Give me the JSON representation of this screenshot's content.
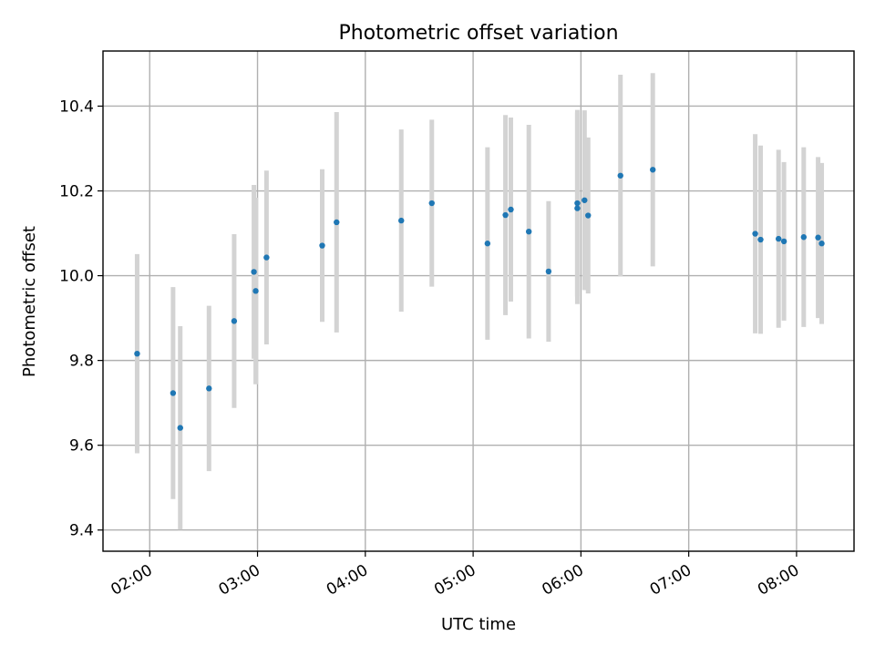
{
  "chart_data": {
    "type": "scatter",
    "title": "Photometric offset variation",
    "xlabel": "UTC time",
    "ylabel": "Photometric offset",
    "x_unit": "UTC time (HH:MM)",
    "xlim": [
      "01:34",
      "08:32"
    ],
    "ylim": [
      9.35,
      10.53
    ],
    "xticks": [
      "02:00",
      "03:00",
      "04:00",
      "05:00",
      "06:00",
      "07:00",
      "08:00"
    ],
    "yticks": [
      9.4,
      9.6,
      9.8,
      10.0,
      10.2,
      10.4
    ],
    "grid": true,
    "colors": {
      "point": "#1f77b4",
      "errorbar": "#d3d3d3"
    },
    "points": [
      {
        "x": "01:53",
        "y": 9.816,
        "err": 0.235
      },
      {
        "x": "02:13",
        "y": 9.723,
        "err": 0.25
      },
      {
        "x": "02:17",
        "y": 9.641,
        "err": 0.24
      },
      {
        "x": "02:33",
        "y": 9.734,
        "err": 0.195
      },
      {
        "x": "02:47",
        "y": 9.893,
        "err": 0.205
      },
      {
        "x": "02:58",
        "y": 10.009,
        "err": 0.205
      },
      {
        "x": "02:59",
        "y": 9.964,
        "err": 0.22
      },
      {
        "x": "03:05",
        "y": 10.043,
        "err": 0.205
      },
      {
        "x": "03:36",
        "y": 10.071,
        "err": 0.18
      },
      {
        "x": "03:44",
        "y": 10.126,
        "err": 0.26
      },
      {
        "x": "04:20",
        "y": 10.13,
        "err": 0.215
      },
      {
        "x": "04:37",
        "y": 10.171,
        "err": 0.197
      },
      {
        "x": "05:08",
        "y": 10.076,
        "err": 0.227
      },
      {
        "x": "05:18",
        "y": 10.143,
        "err": 0.236
      },
      {
        "x": "05:21",
        "y": 10.156,
        "err": 0.217
      },
      {
        "x": "05:31",
        "y": 10.104,
        "err": 0.252
      },
      {
        "x": "05:42",
        "y": 10.01,
        "err": 0.166
      },
      {
        "x": "05:58",
        "y": 10.171,
        "err": 0.22
      },
      {
        "x": "05:58",
        "y": 10.159,
        "err": 0.226
      },
      {
        "x": "06:02",
        "y": 10.178,
        "err": 0.212
      },
      {
        "x": "06:04",
        "y": 10.142,
        "err": 0.184
      },
      {
        "x": "06:22",
        "y": 10.236,
        "err": 0.238
      },
      {
        "x": "06:40",
        "y": 10.25,
        "err": 0.228
      },
      {
        "x": "07:37",
        "y": 10.099,
        "err": 0.235
      },
      {
        "x": "07:40",
        "y": 10.085,
        "err": 0.222
      },
      {
        "x": "07:50",
        "y": 10.087,
        "err": 0.21
      },
      {
        "x": "07:53",
        "y": 10.081,
        "err": 0.187
      },
      {
        "x": "08:04",
        "y": 10.091,
        "err": 0.212
      },
      {
        "x": "08:12",
        "y": 10.09,
        "err": 0.19
      },
      {
        "x": "08:14",
        "y": 10.076,
        "err": 0.19
      }
    ]
  }
}
